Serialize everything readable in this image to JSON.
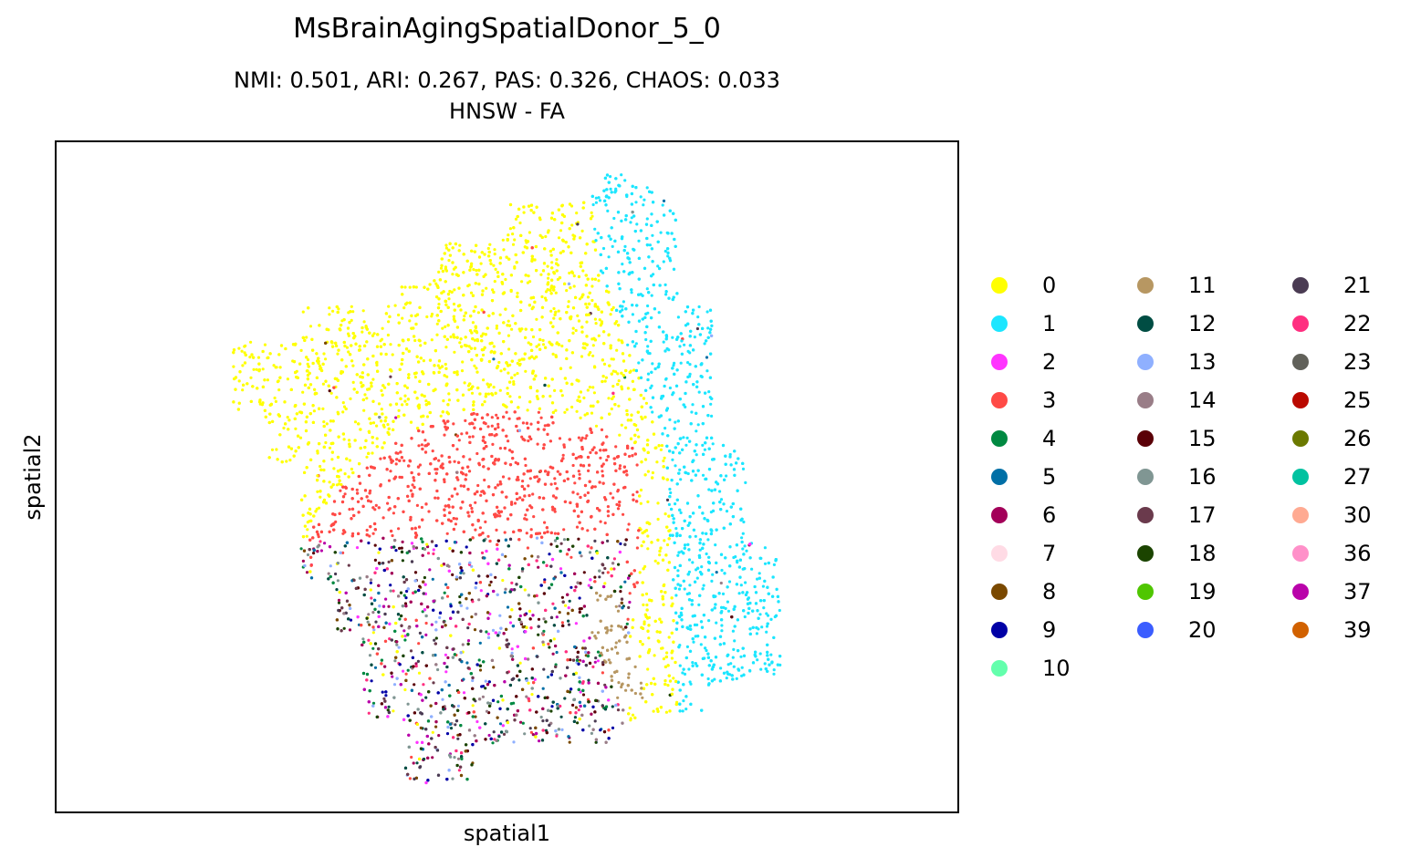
{
  "chart_data": {
    "type": "scatter",
    "title": "MsBrainAgingSpatialDonor_5_0",
    "subtitle": "NMI: 0.501,  ARI: 0.267,  PAS: 0.326,  CHAOS: 0.033",
    "method": "HNSW - FA",
    "xlabel": "spatial1",
    "ylabel": "spatial2",
    "grid": false,
    "legend_position": "right",
    "legend": [
      {
        "label": "0",
        "color": "#ffff00"
      },
      {
        "label": "1",
        "color": "#1ce6ff"
      },
      {
        "label": "2",
        "color": "#ff34ff"
      },
      {
        "label": "3",
        "color": "#ff4a46"
      },
      {
        "label": "4",
        "color": "#008941"
      },
      {
        "label": "5",
        "color": "#006fa6"
      },
      {
        "label": "6",
        "color": "#a30059"
      },
      {
        "label": "7",
        "color": "#ffdbe5"
      },
      {
        "label": "8",
        "color": "#7a4900"
      },
      {
        "label": "9",
        "color": "#0000a6"
      },
      {
        "label": "10",
        "color": "#63ffac"
      },
      {
        "label": "11",
        "color": "#b79762"
      },
      {
        "label": "12",
        "color": "#004d43"
      },
      {
        "label": "13",
        "color": "#8fb0ff"
      },
      {
        "label": "14",
        "color": "#997d87"
      },
      {
        "label": "15",
        "color": "#5a0007"
      },
      {
        "label": "16",
        "color": "#809693"
      },
      {
        "label": "17",
        "color": "#6a3a4c"
      },
      {
        "label": "18",
        "color": "#1b4400"
      },
      {
        "label": "19",
        "color": "#4fc601"
      },
      {
        "label": "20",
        "color": "#3b5dff"
      },
      {
        "label": "21",
        "color": "#4a3b53"
      },
      {
        "label": "22",
        "color": "#ff2f80"
      },
      {
        "label": "23",
        "color": "#61615a"
      },
      {
        "label": "25",
        "color": "#ba0900"
      },
      {
        "label": "26",
        "color": "#6b7900"
      },
      {
        "label": "27",
        "color": "#00c2a0"
      },
      {
        "label": "30",
        "color": "#ffaa92"
      },
      {
        "label": "36",
        "color": "#ff90c9"
      },
      {
        "label": "37",
        "color": "#b903aa"
      },
      {
        "label": "39",
        "color": "#d16100"
      }
    ]
  }
}
